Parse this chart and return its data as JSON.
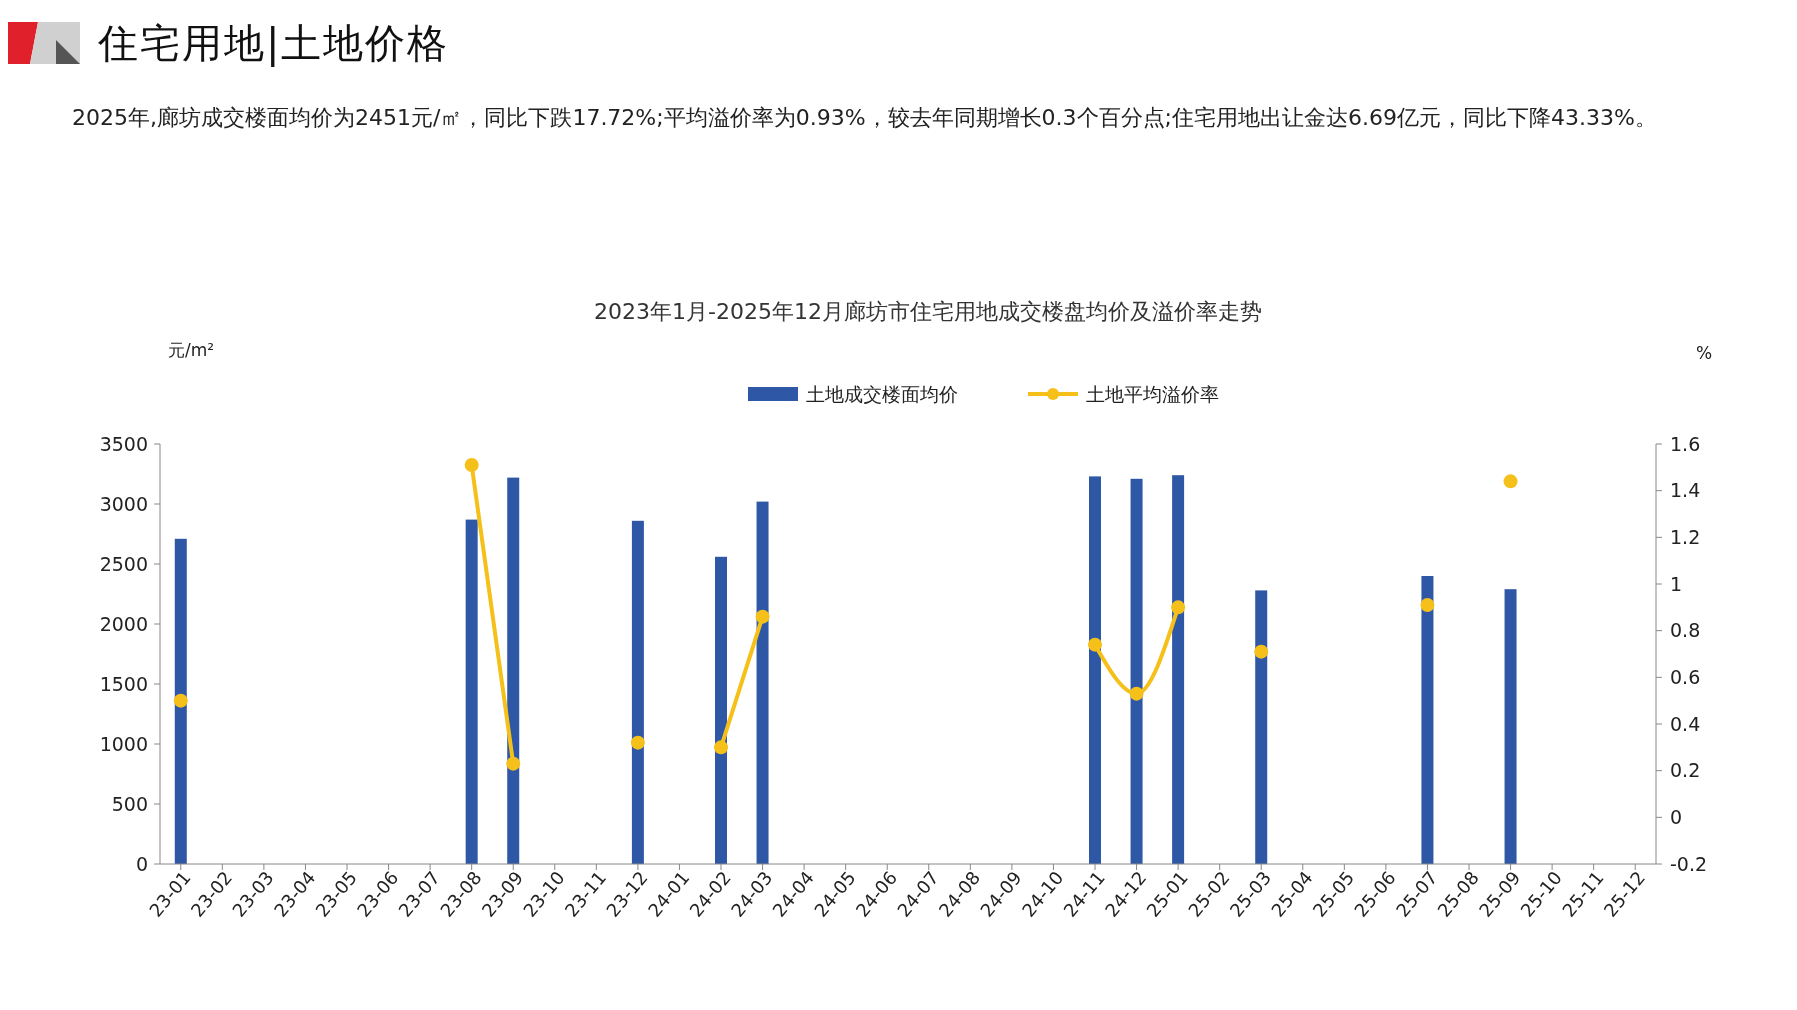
{
  "chart_data": {
    "type": "bar",
    "title": "住宅用地|土地价格",
    "subtitle": "2023年1月-2025年12月廊坊市住宅用地成交楼盘均价及溢价率走势",
    "annotations": [
      "2025年,廊坊成交楼面均价为2451元/㎡，同比下跌17.72%;平均溢价率为0.93%，较去年同期增长0.3个百分点;住宅用地出让金达6.69亿元，同比下降43.33%。"
    ],
    "ylabel": "元/m²",
    "y2label": "%",
    "categories": [
      "23-01",
      "23-02",
      "23-03",
      "23-04",
      "23-05",
      "23-06",
      "23-07",
      "23-08",
      "23-09",
      "23-10",
      "23-11",
      "23-12",
      "24-01",
      "24-02",
      "24-03",
      "24-04",
      "24-05",
      "24-06",
      "24-07",
      "24-08",
      "24-09",
      "24-10",
      "24-11",
      "24-12",
      "25-01",
      "25-02",
      "25-03",
      "25-04",
      "25-05",
      "25-06",
      "25-07",
      "25-08",
      "25-09",
      "25-10",
      "25-11",
      "25-12"
    ],
    "series": [
      {
        "name": "土地成交楼面均价",
        "color": "#2e58a6",
        "values": [
          2710,
          null,
          null,
          null,
          null,
          null,
          null,
          2870,
          3220,
          null,
          null,
          2860,
          null,
          2560,
          3020,
          null,
          null,
          null,
          null,
          null,
          null,
          null,
          3230,
          3210,
          3240,
          null,
          2280,
          null,
          null,
          null,
          2400,
          null,
          2290,
          null,
          null,
          null
        ]
      },
      {
        "name": "土地平均溢价率",
        "type": "line",
        "axis": "y2",
        "color": "#f5c01a",
        "values": [
          0.5,
          null,
          null,
          null,
          null,
          null,
          null,
          1.51,
          0.23,
          null,
          null,
          0.32,
          null,
          0.3,
          0.86,
          null,
          null,
          null,
          null,
          null,
          null,
          null,
          0.74,
          0.53,
          0.9,
          null,
          0.71,
          null,
          null,
          null,
          0.91,
          null,
          1.44,
          null,
          null,
          null
        ]
      }
    ],
    "ylim": [
      0,
      3500
    ],
    "yticks": [
      0,
      500,
      1000,
      1500,
      2000,
      2500,
      3000,
      3500
    ],
    "y2lim": [
      -0.2,
      1.6
    ],
    "y2ticks": [
      -0.2,
      0,
      0.2,
      0.4,
      0.6,
      0.8,
      1,
      1.2,
      1.4,
      1.6
    ],
    "marker": "circle",
    "legend": "top",
    "grid": false
  }
}
